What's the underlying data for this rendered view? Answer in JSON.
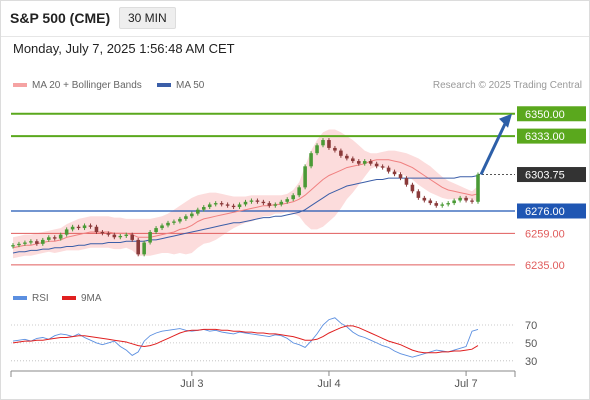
{
  "header": {
    "title": "S&P 500 (CME)",
    "interval": "30 MIN",
    "datetime": "Monday, July 7, 2025 1:56:48 AM CET"
  },
  "legend": {
    "ma20_bb": "MA 20 + Bollinger Bands",
    "ma50": "MA 50",
    "rsi": "RSI",
    "rsi_ma": "9MA"
  },
  "credit": "Research © 2025 Trading Central",
  "colors": {
    "resistance": "#5aa81d",
    "support": "#1f56b3",
    "weak_support": "#e05c5c",
    "last_price_bg": "#333333",
    "bb_fill": "#fbd3d3",
    "ma20": "#f08080",
    "ma50": "#3b5ea8",
    "candle_up": "#4a9a36",
    "candle_down": "#8a3a3a",
    "rsi_line": "#5b8fe0",
    "rsi_ma": "#e02020",
    "arrow": "#2d5fa8"
  },
  "chart_data": [
    {
      "type": "candlestick",
      "ylim": [
        6225,
        6362
      ],
      "x_ticks": [
        {
          "label": "Jul 3",
          "index": 30
        },
        {
          "label": "Jul 4",
          "index": 53
        },
        {
          "label": "Jul 7",
          "index": 76
        }
      ],
      "levels": [
        {
          "label": "6350.00",
          "value": 6350,
          "kind": "resistance"
        },
        {
          "label": "6333.00",
          "value": 6333,
          "kind": "resistance"
        },
        {
          "label": "6303.75",
          "value": 6303.75,
          "kind": "last"
        },
        {
          "label": "6276.00",
          "value": 6276,
          "kind": "support"
        },
        {
          "label": "6259.00",
          "value": 6259,
          "kind": "weak_support"
        },
        {
          "label": "6235.00",
          "value": 6235,
          "kind": "weak_support"
        }
      ],
      "forecast_arrow": {
        "from": 6303.75,
        "to": 6350
      },
      "close": [
        6250,
        6251,
        6252,
        6253,
        6251,
        6254,
        6256,
        6255,
        6258,
        6262,
        6264,
        6263,
        6265,
        6264,
        6260,
        6259,
        6258,
        6256,
        6257,
        6258,
        6254,
        6243,
        6252,
        6260,
        6263,
        6265,
        6267,
        6268,
        6270,
        6272,
        6274,
        6277,
        6279,
        6281,
        6282,
        6281,
        6280,
        6279,
        6281,
        6283,
        6284,
        6283,
        6282,
        6280,
        6281,
        6283,
        6285,
        6288,
        6294,
        6310,
        6320,
        6326,
        6330,
        6324,
        6322,
        6318,
        6316,
        6314,
        6312,
        6314,
        6312,
        6310,
        6309,
        6306,
        6304,
        6301,
        6296,
        6291,
        6286,
        6284,
        6282,
        6280,
        6281,
        6282,
        6284,
        6286,
        6284,
        6283,
        6303.75
      ],
      "ma20": [
        6248,
        6249,
        6250,
        6250,
        6251,
        6252,
        6253,
        6253,
        6254,
        6256,
        6257,
        6258,
        6259,
        6260,
        6260,
        6260,
        6260,
        6259,
        6259,
        6259,
        6258,
        6256,
        6256,
        6256,
        6257,
        6258,
        6259,
        6260,
        6262,
        6263,
        6265,
        6268,
        6270,
        6271,
        6272,
        6273,
        6274,
        6275,
        6276,
        6277,
        6278,
        6279,
        6280,
        6280,
        6281,
        6281,
        6282,
        6283,
        6285,
        6288,
        6292,
        6296,
        6300,
        6303,
        6305,
        6307,
        6309,
        6310,
        6311,
        6312,
        6314,
        6315,
        6315,
        6315,
        6314,
        6313,
        6311,
        6309,
        6306,
        6303,
        6300,
        6297,
        6294,
        6292,
        6291,
        6290,
        6289,
        6288,
        6289
      ],
      "bb_upper": [
        6256,
        6257,
        6258,
        6258,
        6259,
        6260,
        6261,
        6262,
        6263,
        6266,
        6268,
        6270,
        6271,
        6272,
        6272,
        6272,
        6272,
        6271,
        6271,
        6270,
        6270,
        6270,
        6270,
        6270,
        6271,
        6272,
        6274,
        6277,
        6280,
        6283,
        6286,
        6288,
        6289,
        6290,
        6290,
        6289,
        6288,
        6287,
        6287,
        6287,
        6288,
        6288,
        6288,
        6288,
        6288,
        6288,
        6289,
        6292,
        6298,
        6310,
        6322,
        6330,
        6336,
        6338,
        6338,
        6336,
        6333,
        6330,
        6326,
        6322,
        6320,
        6320,
        6321,
        6322,
        6322,
        6321,
        6320,
        6318,
        6316,
        6313,
        6310,
        6306,
        6302,
        6299,
        6297,
        6295,
        6293,
        6291,
        6295
      ],
      "bb_lower": [
        6240,
        6241,
        6242,
        6242,
        6243,
        6244,
        6245,
        6244,
        6245,
        6246,
        6246,
        6246,
        6247,
        6248,
        6248,
        6248,
        6248,
        6247,
        6247,
        6248,
        6246,
        6242,
        6242,
        6242,
        6243,
        6244,
        6244,
        6243,
        6244,
        6243,
        6244,
        6248,
        6251,
        6252,
        6254,
        6257,
        6260,
        6263,
        6265,
        6267,
        6268,
        6270,
        6272,
        6272,
        6274,
        6274,
        6275,
        6274,
        6272,
        6266,
        6262,
        6262,
        6264,
        6268,
        6272,
        6278,
        6285,
        6290,
        6296,
        6302,
        6308,
        6310,
        6309,
        6308,
        6306,
        6305,
        6302,
        6300,
        6296,
        6293,
        6290,
        6288,
        6286,
        6285,
        6285,
        6285,
        6285,
        6285,
        6283
      ],
      "ma50": [
        6244,
        6245,
        6245,
        6246,
        6246,
        6247,
        6247,
        6248,
        6248,
        6249,
        6249,
        6250,
        6250,
        6251,
        6251,
        6251,
        6252,
        6252,
        6252,
        6253,
        6253,
        6253,
        6253,
        6254,
        6254,
        6255,
        6256,
        6257,
        6258,
        6259,
        6260,
        6261,
        6262,
        6263,
        6264,
        6265,
        6266,
        6267,
        6267,
        6268,
        6269,
        6270,
        6271,
        6271,
        6272,
        6272,
        6273,
        6274,
        6275,
        6277,
        6280,
        6283,
        6286,
        6289,
        6291,
        6293,
        6295,
        6296,
        6297,
        6298,
        6299,
        6300,
        6300,
        6301,
        6301,
        6301,
        6301,
        6301,
        6301,
        6301,
        6301,
        6301,
        6301,
        6301,
        6301,
        6302,
        6302,
        6302,
        6303
      ]
    },
    {
      "type": "line",
      "title": "RSI",
      "ylim": [
        22,
        80
      ],
      "y_ticks": [
        70,
        50,
        30
      ],
      "series": [
        {
          "name": "RSI",
          "values": [
            52,
            53,
            54,
            52,
            55,
            56,
            54,
            58,
            60,
            59,
            57,
            60,
            56,
            53,
            50,
            48,
            50,
            52,
            46,
            42,
            36,
            40,
            52,
            58,
            61,
            63,
            64,
            65,
            66,
            64,
            63,
            64,
            65,
            63,
            64,
            62,
            61,
            60,
            62,
            61,
            60,
            59,
            58,
            57,
            59,
            58,
            55,
            50,
            48,
            45,
            52,
            60,
            70,
            76,
            78,
            72,
            68,
            62,
            58,
            56,
            53,
            50,
            47,
            45,
            41,
            38,
            36,
            34,
            36,
            38,
            40,
            42,
            41,
            40,
            42,
            44,
            46,
            63,
            65
          ]
        },
        {
          "name": "9MA",
          "values": [
            50,
            51,
            52,
            52,
            53,
            53,
            54,
            55,
            56,
            56,
            57,
            58,
            58,
            57,
            56,
            55,
            54,
            53,
            52,
            51,
            49,
            47,
            46,
            47,
            49,
            52,
            55,
            58,
            61,
            63,
            64,
            64,
            65,
            65,
            65,
            64,
            64,
            63,
            63,
            62,
            62,
            61,
            61,
            60,
            60,
            59,
            58,
            57,
            55,
            53,
            53,
            54,
            57,
            61,
            64,
            67,
            69,
            69,
            67,
            64,
            61,
            58,
            55,
            52,
            50,
            48,
            45,
            42,
            40,
            39,
            39,
            39,
            40,
            40,
            41,
            41,
            42,
            43,
            47
          ]
        }
      ]
    }
  ]
}
